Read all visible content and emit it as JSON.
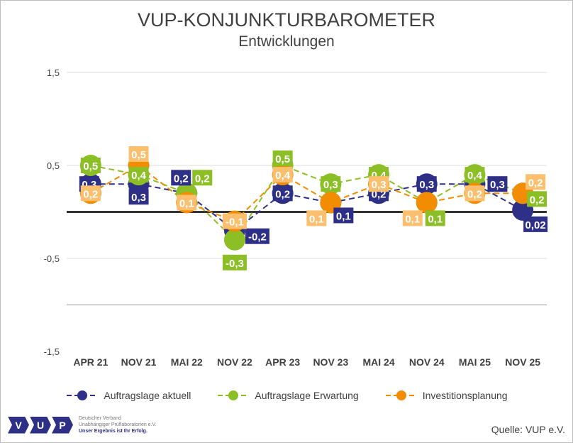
{
  "chart_data": {
    "type": "line",
    "title": "VUP-KONJUNKTURBAROMETER",
    "subtitle": "Entwicklungen",
    "categories": [
      "APR 21",
      "NOV 21",
      "MAI 22",
      "NOV 22",
      "APR 23",
      "NOV 23",
      "MAI 24",
      "NOV 24",
      "MAI 25",
      "NOV 25"
    ],
    "ylim": [
      -1.5,
      1.5
    ],
    "yticks": [
      1.5,
      0.5,
      -0.5,
      -1.5
    ],
    "ytick_labels": [
      "1,5",
      "0,5",
      "-0,5",
      "-1,5"
    ],
    "grid": true,
    "legend_position": "bottom",
    "series": [
      {
        "name": "Auftragslage aktuell",
        "color": "#2e3087",
        "label_bg": "#2e3087",
        "values": [
          0.3,
          0.3,
          0.2,
          -0.2,
          0.2,
          0.1,
          0.2,
          0.3,
          0.3,
          0.02
        ],
        "labels": [
          "0,3",
          "0,3",
          "0,2",
          "-0,2",
          "0,2",
          "0,1",
          "0,2",
          "0,3",
          "0,3",
          "0,02"
        ]
      },
      {
        "name": "Auftragslage Erwartung",
        "color": "#8cbf26",
        "label_bg": "#8cbf26",
        "values": [
          0.5,
          0.4,
          0.2,
          -0.3,
          0.5,
          0.3,
          0.4,
          0.1,
          0.4,
          0.2
        ],
        "labels": [
          "0,5",
          "0,4",
          "0,2",
          "-0,3",
          "0,5",
          "0,3",
          "0,4",
          "0,1",
          "0,4",
          "0,2"
        ]
      },
      {
        "name": "Investitionsplanung",
        "color": "#f28c00",
        "label_bg": "#fbbf6e",
        "values": [
          0.2,
          0.5,
          0.1,
          -0.1,
          0.4,
          0.1,
          0.3,
          0.1,
          0.2,
          0.2
        ],
        "labels": [
          "0,2",
          "0,5",
          "0,1",
          "-0,1",
          "0,4",
          "0,1",
          "0,3",
          "0,1",
          "0,2",
          "0,2"
        ]
      }
    ]
  },
  "logo": {
    "letters": [
      "V",
      "U",
      "P"
    ],
    "line1": "Deutscher Verband",
    "line2": "Unabhängiger Prüflaboratorien e.V.",
    "line3": "Unser Ergebnis ist Ihr Erfolg."
  },
  "source": "Quelle: VUP e.V."
}
